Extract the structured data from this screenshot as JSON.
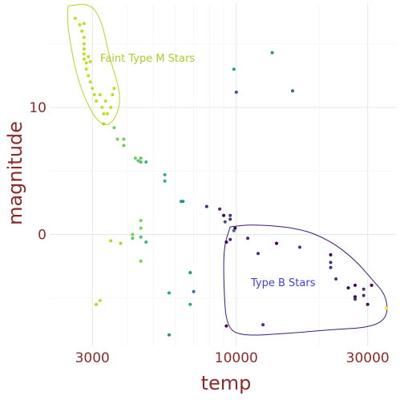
{
  "chart_data": {
    "type": "scatter",
    "xlabel": "temp",
    "ylabel": "magnitude",
    "x_scale": "log",
    "xlim": [
      2100,
      38000
    ],
    "ylim": [
      -8.8,
      18.2
    ],
    "x_ticks": [
      3000,
      10000,
      30000
    ],
    "x_tick_labels": [
      "3000",
      "10000",
      "30000"
    ],
    "y_ticks": [
      0,
      10
    ],
    "y_tick_labels": [
      "0",
      "10"
    ],
    "grid": true,
    "legend": "none",
    "points": [
      {
        "temp": 2600,
        "magnitude": 17.0,
        "color": "#bddf26"
      },
      {
        "temp": 2700,
        "magnitude": 16.5,
        "color": "#bddf26"
      },
      {
        "temp": 2750,
        "magnitude": 16.0,
        "color": "#bddf26"
      },
      {
        "temp": 2800,
        "magnitude": 16.6,
        "color": "#bddf26"
      },
      {
        "temp": 2800,
        "magnitude": 15.5,
        "color": "#bddf26"
      },
      {
        "temp": 2800,
        "magnitude": 15.0,
        "color": "#bddf26"
      },
      {
        "temp": 2800,
        "magnitude": 14.6,
        "color": "#bddf26"
      },
      {
        "temp": 2800,
        "magnitude": 14.2,
        "color": "#bddf26"
      },
      {
        "temp": 2800,
        "magnitude": 13.8,
        "color": "#bddf26"
      },
      {
        "temp": 2850,
        "magnitude": 13.5,
        "color": "#bddf26"
      },
      {
        "temp": 2850,
        "magnitude": 13.0,
        "color": "#bddf26"
      },
      {
        "temp": 2900,
        "magnitude": 14.0,
        "color": "#bddf26"
      },
      {
        "temp": 2900,
        "magnitude": 12.5,
        "color": "#bddf26"
      },
      {
        "temp": 2950,
        "magnitude": 13.6,
        "color": "#bddf26"
      },
      {
        "temp": 2950,
        "magnitude": 12.0,
        "color": "#bddf26"
      },
      {
        "temp": 3000,
        "magnitude": 11.5,
        "color": "#bddf26"
      },
      {
        "temp": 3050,
        "magnitude": 11.0,
        "color": "#bddf26"
      },
      {
        "temp": 3100,
        "magnitude": 10.5,
        "color": "#bddf26"
      },
      {
        "temp": 3200,
        "magnitude": 11.0,
        "color": "#bddf26"
      },
      {
        "temp": 3250,
        "magnitude": 10.0,
        "color": "#bddf26"
      },
      {
        "temp": 3300,
        "magnitude": 9.5,
        "color": "#bddf26"
      },
      {
        "temp": 3350,
        "magnitude": 10.5,
        "color": "#bddf26"
      },
      {
        "temp": 3400,
        "magnitude": 9.5,
        "color": "#bddf26"
      },
      {
        "temp": 3500,
        "magnitude": 10.0,
        "color": "#bddf26"
      },
      {
        "temp": 3550,
        "magnitude": 11.0,
        "color": "#bddf26"
      },
      {
        "temp": 3600,
        "magnitude": 11.5,
        "color": "#bddf26"
      },
      {
        "temp": 3300,
        "magnitude": 8.7,
        "color": "#a0da39"
      },
      {
        "temp": 3600,
        "magnitude": 8.4,
        "color": "#7ad151"
      },
      {
        "temp": 3700,
        "magnitude": 7.5,
        "color": "#7ad151"
      },
      {
        "temp": 3900,
        "magnitude": 7.5,
        "color": "#6ccd5a"
      },
      {
        "temp": 3900,
        "magnitude": 7.0,
        "color": "#6ccd5a"
      },
      {
        "temp": 4300,
        "magnitude": 6.0,
        "color": "#6ccd5a"
      },
      {
        "temp": 4400,
        "magnitude": 5.8,
        "color": "#5ec962"
      },
      {
        "temp": 4500,
        "magnitude": 6.0,
        "color": "#5ec962"
      },
      {
        "temp": 4500,
        "magnitude": 5.7,
        "color": "#4ac16d"
      },
      {
        "temp": 4700,
        "magnitude": 5.7,
        "color": "#38b977"
      },
      {
        "temp": 5500,
        "magnitude": 4.7,
        "color": "#2fb47c"
      },
      {
        "temp": 5500,
        "magnitude": 4.2,
        "color": "#29af7f"
      },
      {
        "temp": 6300,
        "magnitude": 2.6,
        "color": "#1fa188"
      },
      {
        "temp": 6400,
        "magnitude": 2.6,
        "color": "#1f9a8a"
      },
      {
        "temp": 4500,
        "magnitude": 1.1,
        "color": "#7ad151"
      },
      {
        "temp": 4500,
        "magnitude": 0.5,
        "color": "#7ad151"
      },
      {
        "temp": 4200,
        "magnitude": 0.0,
        "color": "#7ad151"
      },
      {
        "temp": 4200,
        "magnitude": -0.3,
        "color": "#5ec962"
      },
      {
        "temp": 4500,
        "magnitude": -0.2,
        "color": "#4ac16d"
      },
      {
        "temp": 4700,
        "magnitude": -0.6,
        "color": "#38b977"
      },
      {
        "temp": 3500,
        "magnitude": -0.5,
        "color": "#a0da39"
      },
      {
        "temp": 3800,
        "magnitude": -0.7,
        "color": "#a0da39"
      },
      {
        "temp": 4500,
        "magnitude": -2.1,
        "color": "#7ad151"
      },
      {
        "temp": 3100,
        "magnitude": -5.5,
        "color": "#a0da39"
      },
      {
        "temp": 3200,
        "magnitude": -5.2,
        "color": "#bddf26"
      },
      {
        "temp": 6800,
        "magnitude": -3.0,
        "color": "#21918c"
      },
      {
        "temp": 7000,
        "magnitude": -4.5,
        "color": "#2a788e"
      },
      {
        "temp": 5700,
        "magnitude": -4.6,
        "color": "#22a884"
      },
      {
        "temp": 6800,
        "magnitude": -5.5,
        "color": "#22a884"
      },
      {
        "temp": 5700,
        "magnitude": -7.9,
        "color": "#21918c"
      },
      {
        "temp": 7800,
        "magnitude": 2.2,
        "color": "#482878"
      },
      {
        "temp": 8700,
        "magnitude": 2.0,
        "color": "#482878"
      },
      {
        "temp": 9000,
        "magnitude": 1.5,
        "color": "#440154"
      },
      {
        "temp": 9100,
        "magnitude": 1.0,
        "color": "#3b528b"
      },
      {
        "temp": 9500,
        "magnitude": 1.5,
        "color": "#46337e"
      },
      {
        "temp": 9500,
        "magnitude": 1.2,
        "color": "#46337e"
      },
      {
        "temp": 9900,
        "magnitude": 0.5,
        "color": "#440154"
      },
      {
        "temp": 9800,
        "magnitude": 0.3,
        "color": "#2c728e"
      },
      {
        "temp": 9500,
        "magnitude": -0.4,
        "color": "#482878"
      },
      {
        "temp": 9200,
        "magnitude": -0.6,
        "color": "#440154"
      },
      {
        "temp": 11000,
        "magnitude": -0.3,
        "color": "#482878"
      },
      {
        "temp": 12000,
        "magnitude": -1.5,
        "color": "#46337e"
      },
      {
        "temp": 14000,
        "magnitude": -0.7,
        "color": "#440154"
      },
      {
        "temp": 17000,
        "magnitude": -1.0,
        "color": "#46337e"
      },
      {
        "temp": 22000,
        "magnitude": -1.6,
        "color": "#440154"
      },
      {
        "temp": 22000,
        "magnitude": -2.2,
        "color": "#472d7b"
      },
      {
        "temp": 22000,
        "magnitude": -2.6,
        "color": "#46337e"
      },
      {
        "temp": 23000,
        "magnitude": -3.5,
        "color": "#46337e"
      },
      {
        "temp": 25500,
        "magnitude": -4.2,
        "color": "#440154"
      },
      {
        "temp": 27000,
        "magnitude": -4.0,
        "color": "#440154"
      },
      {
        "temp": 27000,
        "magnitude": -4.9,
        "color": "#440154"
      },
      {
        "temp": 27000,
        "magnitude": -5.1,
        "color": "#46337e"
      },
      {
        "temp": 29000,
        "magnitude": -4.3,
        "color": "#46337e"
      },
      {
        "temp": 29000,
        "magnitude": -4.8,
        "color": "#46337e"
      },
      {
        "temp": 31000,
        "magnitude": -4.0,
        "color": "#440154"
      },
      {
        "temp": 30000,
        "magnitude": -5.5,
        "color": "#440154"
      },
      {
        "temp": 35000,
        "magnitude": -5.8,
        "color": "#fde725"
      },
      {
        "temp": 12500,
        "magnitude": -7.1,
        "color": "#472d7b"
      },
      {
        "temp": 9200,
        "magnitude": -7.2,
        "color": "#440154"
      },
      {
        "temp": 9800,
        "magnitude": 13.0,
        "color": "#1f9a8a"
      },
      {
        "temp": 10000,
        "magnitude": 11.2,
        "color": "#3b528b"
      },
      {
        "temp": 13500,
        "magnitude": 14.3,
        "color": "#21918c"
      },
      {
        "temp": 16000,
        "magnitude": 11.3,
        "color": "#31688e"
      }
    ],
    "annotations": [
      {
        "text": "Faint Type M Stars",
        "color": "#a8cd28"
      },
      {
        "text": "Type B Stars",
        "color": "#4040e0"
      }
    ],
    "regions": [
      {
        "label": "Faint Type M Stars",
        "color": "#b6d521",
        "boundary": [
          [
            2450,
            18.0
          ],
          [
            2950,
            18.2
          ],
          [
            3250,
            16.8
          ],
          [
            3450,
            14.0
          ],
          [
            3700,
            12.0
          ],
          [
            3800,
            10.5
          ],
          [
            3650,
            9.2
          ],
          [
            3400,
            8.5
          ],
          [
            3100,
            9.0
          ],
          [
            2800,
            10.8
          ],
          [
            2600,
            13.0
          ],
          [
            2500,
            15.0
          ],
          [
            2430,
            16.8
          ],
          [
            2450,
            18.0
          ]
        ]
      },
      {
        "label": "Type B Stars",
        "color": "#3d1a78",
        "boundary": [
          [
            9500,
            0.6
          ],
          [
            11500,
            0.8
          ],
          [
            17000,
            0.5
          ],
          [
            22000,
            -0.5
          ],
          [
            27000,
            -2.0
          ],
          [
            31000,
            -3.5
          ],
          [
            35000,
            -4.8
          ],
          [
            35500,
            -6.5
          ],
          [
            31000,
            -7.3
          ],
          [
            22000,
            -7.5
          ],
          [
            15000,
            -7.8
          ],
          [
            10500,
            -8.0
          ],
          [
            9200,
            -7.3
          ],
          [
            9000,
            -4.0
          ],
          [
            9000,
            -1.0
          ],
          [
            9500,
            0.6
          ]
        ]
      }
    ]
  }
}
